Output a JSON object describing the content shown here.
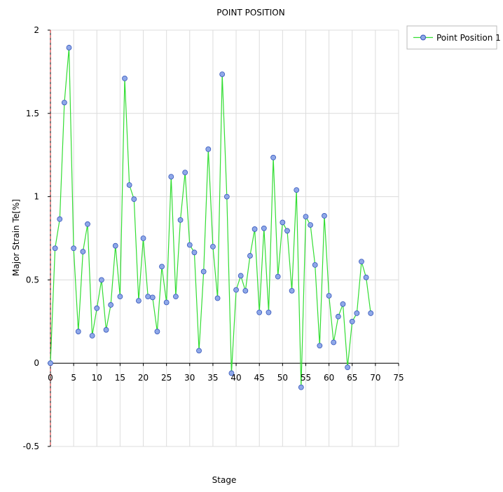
{
  "chart_data": {
    "type": "line",
    "title": "POINT POSITION",
    "xlabel": "Stage",
    "ylabel": "Major Strain Te[%]",
    "xlim": [
      0,
      75
    ],
    "ylim": [
      -0.5,
      2
    ],
    "xticks": [
      0,
      5,
      10,
      15,
      20,
      25,
      30,
      35,
      40,
      45,
      50,
      55,
      60,
      65,
      70,
      75
    ],
    "yticks": [
      -0.5,
      0,
      0.5,
      1,
      1.5,
      2
    ],
    "ytick_labels": [
      "-0.5",
      "0",
      "0.5",
      "1",
      "1.5",
      "2"
    ],
    "grid": true,
    "legend_position": "top-right",
    "series": [
      {
        "name": "Point Position 1",
        "line_color": "#33dd33",
        "marker_color": "#8fa8e8",
        "marker_edge": "#3355bb",
        "x": [
          0,
          1,
          2,
          3,
          4,
          5,
          6,
          7,
          8,
          9,
          10,
          11,
          12,
          13,
          14,
          15,
          16,
          17,
          18,
          19,
          20,
          21,
          22,
          23,
          24,
          25,
          26,
          27,
          28,
          29,
          30,
          31,
          32,
          33,
          34,
          35,
          36,
          37,
          38,
          39,
          40,
          41,
          42,
          43,
          44,
          45,
          46,
          47,
          48,
          49,
          50,
          51,
          52,
          53,
          54,
          55,
          56,
          57,
          58,
          59,
          60,
          61,
          62,
          63,
          64,
          65,
          66,
          67,
          68,
          69
        ],
        "y": [
          0.0,
          0.69,
          0.865,
          1.565,
          1.895,
          0.69,
          0.19,
          0.67,
          0.835,
          0.165,
          0.33,
          0.5,
          0.2,
          0.35,
          0.705,
          0.4,
          1.71,
          1.07,
          0.985,
          0.375,
          0.75,
          0.4,
          0.395,
          0.19,
          0.58,
          0.365,
          1.12,
          0.4,
          0.86,
          1.145,
          0.71,
          0.665,
          0.075,
          0.55,
          1.285,
          0.7,
          0.39,
          1.735,
          1.0,
          -0.06,
          0.44,
          0.525,
          0.435,
          0.645,
          0.805,
          0.305,
          0.81,
          0.305,
          1.235,
          0.52,
          0.845,
          0.795,
          0.435,
          1.04,
          -0.145,
          0.88,
          0.83,
          0.59,
          0.105,
          0.885,
          0.405,
          0.125,
          0.28,
          0.355,
          -0.025,
          0.25,
          0.3,
          0.61,
          0.515,
          0.3
        ]
      }
    ],
    "reference_line": {
      "x": 0,
      "color": "#cc2222",
      "style": "dashed"
    }
  }
}
